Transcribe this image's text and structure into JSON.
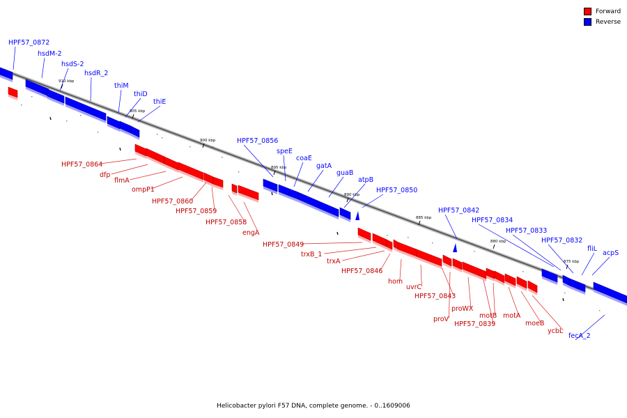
{
  "colors": {
    "forward": "#ff0000",
    "reverse": "#0000ff"
  },
  "legend": {
    "forward_label": "Forward",
    "reverse_label": "Reverse"
  },
  "caption": "Helicobacter pylori F57 DNA, complete genome. - 0..1609006",
  "ticks": [
    "910 kbp",
    "905 kbp",
    "900 kbp",
    "895 kbp",
    "890 kbp",
    "885 kbp",
    "880 kbp",
    "875 kbp"
  ],
  "forward_genes": [
    "HPF57_0864",
    "dfp",
    "flmA",
    "ompP1",
    "HPF57_0860",
    "HPF57_0859",
    "HPF57_0858",
    "engA",
    "HPF57_0849",
    "trxB_1",
    "trxA",
    "HPF57_0846",
    "hom",
    "uvrC",
    "HPF57_0843",
    "proV",
    "proWX",
    "HPF57_0839",
    "motB",
    "motA",
    "moeB",
    "ycbL"
  ],
  "reverse_genes": [
    "HPF57_0872",
    "hsdM-2",
    "hsdS-2",
    "hsdR_2",
    "thiM",
    "thiD",
    "thiE",
    "HPF57_0856",
    "speE",
    "coaE",
    "gatA",
    "guaB",
    "atpB",
    "HPF57_0850",
    "HPF57_0842",
    "HPF57_0834",
    "HPF57_0833",
    "HPF57_0832",
    "fliL",
    "acpS",
    "fecA_2"
  ]
}
